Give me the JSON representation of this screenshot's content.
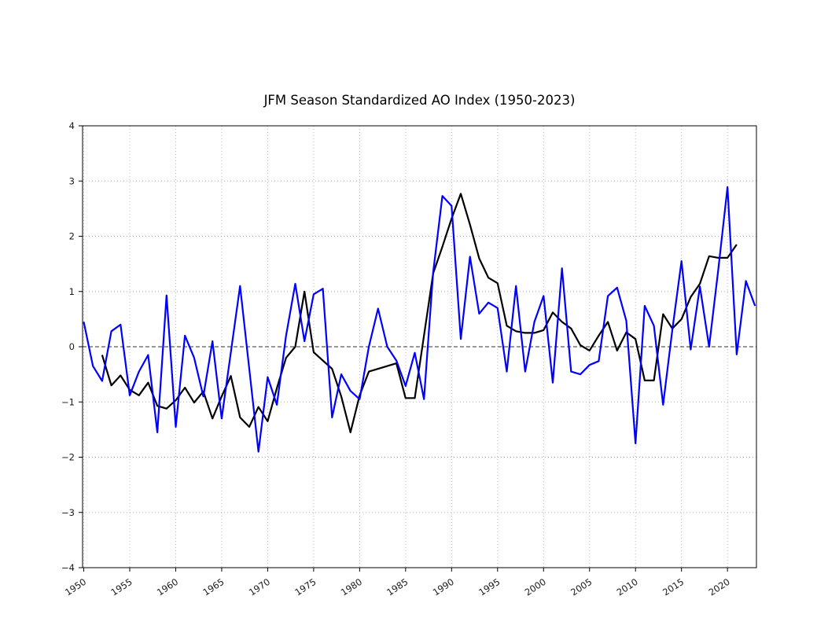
{
  "figure": {
    "background": "#ffffff"
  },
  "chart_data": {
    "type": "line",
    "title": "JFM Season Standardized AO Index (1950-2023)",
    "xlabel": "",
    "ylabel": "",
    "xlim": [
      1949.87,
      2023.15
    ],
    "ylim": [
      -4,
      4
    ],
    "grid": true,
    "grid_style": "dotted",
    "zero_line_style": "dashed",
    "legend_position": "none",
    "x": [
      1950,
      1951,
      1952,
      1953,
      1954,
      1955,
      1956,
      1957,
      1958,
      1959,
      1960,
      1961,
      1962,
      1963,
      1964,
      1965,
      1966,
      1967,
      1968,
      1969,
      1970,
      1971,
      1972,
      1973,
      1974,
      1975,
      1976,
      1977,
      1978,
      1979,
      1980,
      1981,
      1982,
      1983,
      1984,
      1985,
      1986,
      1987,
      1988,
      1989,
      1990,
      1991,
      1992,
      1993,
      1994,
      1995,
      1996,
      1997,
      1998,
      1999,
      2000,
      2001,
      2002,
      2003,
      2004,
      2005,
      2006,
      2007,
      2008,
      2009,
      2010,
      2011,
      2012,
      2013,
      2014,
      2015,
      2016,
      2017,
      2018,
      2019,
      2020,
      2021,
      2022,
      2023
    ],
    "series": [
      {
        "name": "blue-line",
        "color": "#0000ff",
        "width": 2.2,
        "values": [
          0.45,
          -0.35,
          -0.62,
          0.28,
          0.4,
          -0.88,
          -0.45,
          -0.15,
          -1.55,
          0.93,
          -1.45,
          0.2,
          -0.2,
          -0.9,
          0.1,
          -1.3,
          -0.1,
          1.1,
          -0.4,
          -1.9,
          -0.55,
          -1.05,
          0.2,
          1.14,
          0.1,
          0.95,
          1.05,
          -1.28,
          -0.5,
          -0.8,
          -0.95,
          0.0,
          0.69,
          0.0,
          -0.25,
          -0.71,
          -0.11,
          -0.95,
          1.35,
          2.73,
          2.55,
          0.14,
          1.63,
          0.6,
          0.8,
          0.7,
          -0.45,
          1.1,
          -0.45,
          0.45,
          0.92,
          -0.65,
          1.42,
          -0.45,
          -0.5,
          -0.33,
          -0.26,
          0.92,
          1.07,
          0.47,
          -1.75,
          0.74,
          0.38,
          -1.05,
          0.3,
          1.55,
          -0.05,
          1.09,
          0.0,
          1.4,
          2.89,
          -0.14,
          1.19,
          0.74
        ]
      },
      {
        "name": "black-line",
        "color": "#000000",
        "width": 2.2,
        "values": [
          null,
          null,
          -0.15,
          -0.7,
          -0.52,
          -0.78,
          -0.88,
          -0.65,
          -1.07,
          -1.12,
          -0.97,
          -0.74,
          -1.01,
          -0.81,
          -1.3,
          -0.9,
          -0.53,
          -1.28,
          -1.45,
          -1.09,
          -1.35,
          -0.75,
          -0.2,
          0.0,
          1.0,
          -0.1,
          -0.25,
          -0.4,
          -0.9,
          -1.55,
          -0.88,
          -0.45,
          -0.4,
          -0.35,
          -0.3,
          -0.93,
          -0.93,
          0.2,
          1.33,
          1.81,
          2.32,
          2.77,
          2.21,
          1.6,
          1.25,
          1.15,
          0.38,
          0.28,
          0.25,
          0.25,
          0.3,
          0.62,
          0.45,
          0.33,
          0.03,
          -0.07,
          0.2,
          0.45,
          -0.07,
          0.26,
          0.14,
          -0.61,
          -0.61,
          0.59,
          0.33,
          0.5,
          0.9,
          1.14,
          1.64,
          1.61,
          1.61,
          1.85,
          null,
          null
        ]
      }
    ],
    "yticks": [
      4,
      3,
      2,
      1,
      0,
      -1,
      -2,
      -3,
      -4
    ],
    "y_tick_labels": [
      "4",
      "3",
      "2",
      "1",
      "0",
      "−1",
      "−2",
      "−3",
      "−4"
    ],
    "xticks": [
      1950,
      1955,
      1960,
      1965,
      1970,
      1975,
      1980,
      1985,
      1990,
      1995,
      2000,
      2005,
      2010,
      2015,
      2020
    ],
    "x_tick_labels": [
      "1950",
      "1955",
      "1960",
      "1965",
      "1970",
      "1975",
      "1980",
      "1985",
      "1990",
      "1995",
      "2000",
      "2005",
      "2010",
      "2015",
      "2020"
    ],
    "colors": {
      "grid": "#b3b3b3",
      "zero_line": "#333333",
      "spine": "#000000",
      "tick_label": "#1a1a1a"
    }
  }
}
